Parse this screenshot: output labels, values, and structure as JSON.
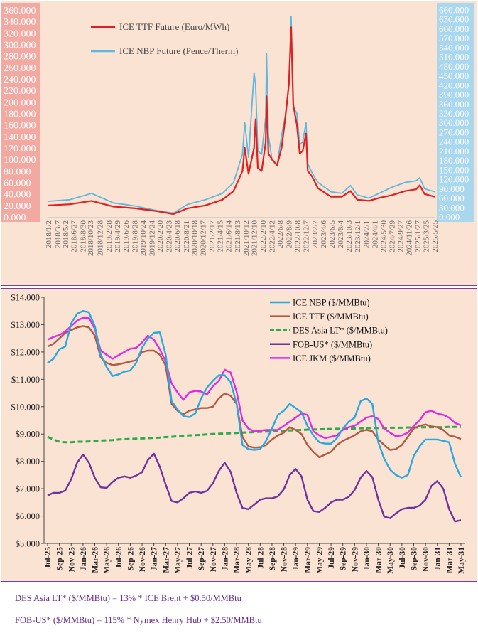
{
  "chart_data": [
    {
      "type": "line",
      "series": [
        {
          "name": "ICE TTF Future (Euro/MWh)",
          "color": "#e02020",
          "axis": "left",
          "x": [
            "2018/1/2",
            "2018/6/1",
            "2018/11/1",
            "2019/4/1",
            "2019/9/1",
            "2020/2/1",
            "2020/5/25",
            "2020/9/1",
            "2021/1/4",
            "2021/5/3",
            "2021/7/20",
            "2021/9/20",
            "2021/10/6",
            "2021/11/1",
            "2021/12/10",
            "2021/12/21",
            "2022/1/5",
            "2022/2/1",
            "2022/3/1",
            "2022/3/7",
            "2022/3/20",
            "2022/4/15",
            "2022/5/20",
            "2022/6/20",
            "2022/7/15",
            "2022/8/10",
            "2022/8/26",
            "2022/9/10",
            "2022/10/5",
            "2022/10/25",
            "2022/11/15",
            "2022/12/8",
            "2022/12/20",
            "2023/1/20",
            "2023/3/1",
            "2023/6/1",
            "2023/8/15",
            "2023/10/15",
            "2023/12/1",
            "2024/2/20",
            "2024/5/1",
            "2024/8/1",
            "2024/11/1",
            "2025/1/15",
            "2025/2/10",
            "2025/3/15",
            "2025/5/25"
          ],
          "values": [
            20,
            22,
            28,
            18,
            15,
            10,
            5,
            15,
            20,
            30,
            45,
            80,
            120,
            75,
            120,
            170,
            85,
            80,
            130,
            210,
            110,
            100,
            90,
            120,
            170,
            230,
            330,
            195,
            160,
            110,
            115,
            145,
            80,
            70,
            50,
            35,
            35,
            45,
            30,
            28,
            33,
            38,
            45,
            48,
            55,
            40,
            35
          ]
        },
        {
          "name": "ICE NBP Future (Pence/Therm)",
          "color": "#5cb8e0",
          "axis": "right",
          "x": [
            "2018/1/2",
            "2018/6/1",
            "2018/11/1",
            "2019/4/1",
            "2019/9/1",
            "2020/2/1",
            "2020/5/25",
            "2020/9/1",
            "2021/1/4",
            "2021/5/3",
            "2021/7/20",
            "2021/9/20",
            "2021/10/6",
            "2021/11/1",
            "2021/12/10",
            "2021/12/21",
            "2022/1/5",
            "2022/2/1",
            "2022/3/1",
            "2022/3/7",
            "2022/3/20",
            "2022/4/15",
            "2022/5/20",
            "2022/6/20",
            "2022/7/15",
            "2022/8/10",
            "2022/8/26",
            "2022/9/10",
            "2022/10/5",
            "2022/10/25",
            "2022/11/15",
            "2022/12/8",
            "2022/12/20",
            "2023/1/20",
            "2023/3/1",
            "2023/6/1",
            "2023/8/15",
            "2023/10/15",
            "2023/12/1",
            "2024/2/20",
            "2024/5/1",
            "2024/8/1",
            "2024/11/1",
            "2025/1/15",
            "2025/2/10",
            "2025/3/15",
            "2025/5/25"
          ],
          "values": [
            50,
            55,
            75,
            45,
            35,
            20,
            12,
            40,
            55,
            75,
            110,
            200,
            300,
            190,
            460,
            420,
            210,
            200,
            320,
            520,
            260,
            180,
            165,
            260,
            320,
            420,
            640,
            350,
            330,
            230,
            240,
            300,
            170,
            140,
            110,
            80,
            75,
            100,
            70,
            60,
            75,
            95,
            110,
            115,
            125,
            90,
            80
          ]
        }
      ],
      "left_axis": {
        "ylim": [
          0,
          360
        ],
        "ticks": [
          "0.000",
          "20.000",
          "40.000",
          "60.000",
          "80.000",
          "100.000",
          "120.000",
          "140.000",
          "160.000",
          "180.000",
          "200.000",
          "220.000",
          "240.000",
          "260.000",
          "280.000",
          "300.000",
          "320.000",
          "340.000",
          "360.000"
        ],
        "bg_color": "#f2a9a1"
      },
      "right_axis": {
        "ylim": [
          0,
          660
        ],
        "ticks": [
          "0.000",
          "30.000",
          "60.000",
          "90.000",
          "120.000",
          "150.000",
          "180.000",
          "210.000",
          "240.000",
          "270.000",
          "300.000",
          "330.000",
          "360.000",
          "390.000",
          "420.000",
          "450.000",
          "480.000",
          "510.000",
          "540.000",
          "570.000",
          "600.000",
          "630.000",
          "660.000"
        ],
        "bg_color": "#a9d8ee"
      },
      "x_ticks": [
        "2018/1/2",
        "2018/4/27",
        "2018/8/30",
        "2018/12/28",
        "2019/4/29",
        "2019/8/28",
        "2019/12/24",
        "2020/4/23",
        "2020/8/21",
        "2020/12/17",
        "2021/4/15",
        "2021/8/13",
        "2021/12/10",
        "2022/4/12",
        "2022/8/9",
        "2022/12/7",
        "2023/4/6",
        "2023/8/4",
        "2023/12/1",
        "2024/4/1",
        "2024/7/29",
        "2024/11/26",
        "2025/3/25"
      ],
      "x_tick_labels": [
        "2018/1/2",
        "2018/3/7",
        "2018/5/2",
        "2018/6/27",
        "2018/8/30",
        "2018/10/23",
        "2018/12/28",
        "2019/2/28",
        "2019/4/29",
        "2019/6/26",
        "2019/8/28",
        "2019/10/24",
        "2019/12/24",
        "2020/2/20",
        "2020/4/23",
        "2020/6/18",
        "2020/8/21",
        "2020/10/18",
        "2020/12/17",
        "2021/2/17",
        "2021/4/15",
        "2021/6/14",
        "2021/8/13",
        "2021/10/12",
        "2021/12/10",
        "2022/2/10",
        "2022/4/12",
        "2022/6/8",
        "2022/8/9",
        "2022/10/8",
        "2022/12/7",
        "2023/2/7",
        "2023/4/6",
        "2023/6/5",
        "2023/8/4",
        "2023/10/3",
        "2023/12/1",
        "2024/2/1",
        "2024/4/1",
        "2024/5/30",
        "2024/7/29",
        "2024/9/27",
        "2024/11/26",
        "2025/1/27",
        "2025/3/25",
        "2025/5/25"
      ],
      "legend_position": "top-left",
      "grid": false
    },
    {
      "type": "line",
      "categories": [
        "Jul-25",
        "Aug-25",
        "Sep-25",
        "Oct-25",
        "Nov-25",
        "Dec-25",
        "Jan-26",
        "Feb-26",
        "Mar-26",
        "Apr-26",
        "May-26",
        "Jun-26",
        "Jul-26",
        "Aug-26",
        "Sep-26",
        "Oct-26",
        "Nov-26",
        "Dec-26",
        "Jan-27",
        "Feb-27",
        "Mar-27",
        "Apr-27",
        "May-27",
        "Jun-27",
        "Jul-27",
        "Aug-27",
        "Sep-27",
        "Oct-27",
        "Nov-27",
        "Dec-27",
        "Jan-28",
        "Feb-28",
        "Mar-28",
        "Apr-28",
        "May-28",
        "Jun-28",
        "Jul-28",
        "Aug-28",
        "Sep-28",
        "Oct-28",
        "Nov-28",
        "Dec-28",
        "Jan-29",
        "Feb-29",
        "Mar-29",
        "Apr-29",
        "May-29",
        "Jun-29",
        "Jul-29",
        "Aug-29",
        "Sep-29",
        "Oct-29",
        "Nov-29",
        "Dec-29",
        "Jan-30",
        "Feb-30",
        "Mar-30",
        "Apr-30",
        "May-30",
        "Jun-30",
        "Jul-30",
        "Aug-30",
        "Sep-30",
        "Oct-30",
        "Nov-30",
        "Dec-30",
        "Jan-31",
        "Feb-31",
        "Mar-31",
        "Apr-31",
        "May-31"
      ],
      "tick_labels": [
        "Jul-25",
        "Sep-25",
        "Nov-25",
        "Jan-26",
        "Mar-26",
        "May-26",
        "Jul-26",
        "Sep-26",
        "Nov-26",
        "Jan-27",
        "Mar-27",
        "May-27",
        "Jul-27",
        "Sep-27",
        "Nov-27",
        "Jan-28",
        "Mar-28",
        "May-28",
        "Jul-28",
        "Sep-28",
        "Nov-28",
        "Jan-29",
        "Mar-29",
        "May-29",
        "Jul-29",
        "Sep-29",
        "Nov-29",
        "Jan-30",
        "Mar-30",
        "May-30",
        "Jul-30",
        "Sep-30",
        "Nov-30",
        "Jan-31",
        "Mar-31",
        "May-31"
      ],
      "series": [
        {
          "name": "ICE NBP ($/MMBtu)",
          "color": "#27a8e0",
          "dash": false,
          "values": [
            11.6,
            11.75,
            12.1,
            12.2,
            13.05,
            13.4,
            13.5,
            13.45,
            12.95,
            11.9,
            11.45,
            11.12,
            11.18,
            11.28,
            11.32,
            11.6,
            12.15,
            12.5,
            12.7,
            12.72,
            11.9,
            10.2,
            9.9,
            9.65,
            9.62,
            9.75,
            10.3,
            10.7,
            10.95,
            11.15,
            11.15,
            10.9,
            10.1,
            8.6,
            8.45,
            8.42,
            8.45,
            8.75,
            9.2,
            9.7,
            9.85,
            10.1,
            9.95,
            9.8,
            9.3,
            8.95,
            8.7,
            8.65,
            8.65,
            8.85,
            9.2,
            9.45,
            9.6,
            10.2,
            10.3,
            10.1,
            8.7,
            8.1,
            7.7,
            7.5,
            7.4,
            7.5,
            8.2,
            8.55,
            8.8,
            8.8,
            8.8,
            8.75,
            8.7,
            7.9,
            7.42
          ]
        },
        {
          "name": "ICE TTF ($/MMBtu)",
          "color": "#b05a43",
          "dash": false,
          "values": [
            12.2,
            12.3,
            12.5,
            12.7,
            12.8,
            12.9,
            12.95,
            12.9,
            12.6,
            11.8,
            11.6,
            11.52,
            11.55,
            11.6,
            11.65,
            11.7,
            12.0,
            12.05,
            12.05,
            11.9,
            11.5,
            10.1,
            9.85,
            9.72,
            9.85,
            9.9,
            9.95,
            9.95,
            10.0,
            10.3,
            10.48,
            10.4,
            10.1,
            8.9,
            8.55,
            8.5,
            8.52,
            8.6,
            8.8,
            8.95,
            9.05,
            9.25,
            9.15,
            9.0,
            8.6,
            8.35,
            8.15,
            8.25,
            8.35,
            8.6,
            8.75,
            8.85,
            8.95,
            9.1,
            9.15,
            9.1,
            8.8,
            8.6,
            8.42,
            8.45,
            8.6,
            8.9,
            9.2,
            9.3,
            9.35,
            9.28,
            9.25,
            9.15,
            8.95,
            8.9,
            8.82
          ]
        },
        {
          "name": "DES Asia LT* ($/MMBtu)",
          "color": "#2bab4b",
          "dash": true,
          "values": [
            8.9,
            8.8,
            8.72,
            8.7,
            8.7,
            8.72,
            8.72,
            8.73,
            8.75,
            8.76,
            8.77,
            8.78,
            8.8,
            8.81,
            8.82,
            8.83,
            8.84,
            8.85,
            8.86,
            8.87,
            8.89,
            8.9,
            8.92,
            8.93,
            8.95,
            8.96,
            8.97,
            8.99,
            9.0,
            9.01,
            9.02,
            9.03,
            9.04,
            9.05,
            9.06,
            9.07,
            9.08,
            9.09,
            9.1,
            9.11,
            9.12,
            9.13,
            9.14,
            9.15,
            9.16,
            9.17,
            9.17,
            9.18,
            9.18,
            9.19,
            9.19,
            9.2,
            9.2,
            9.21,
            9.21,
            9.22,
            9.22,
            9.22,
            9.23,
            9.23,
            9.23,
            9.24,
            9.24,
            9.24,
            9.25,
            9.25,
            9.25,
            9.25,
            9.26,
            9.26,
            9.26
          ]
        },
        {
          "name": "FOB-US* ($/MMBtu)",
          "color": "#6c34a0",
          "dash": false,
          "values": [
            6.75,
            6.85,
            6.85,
            6.93,
            7.35,
            7.95,
            8.25,
            7.95,
            7.4,
            7.05,
            7.03,
            7.25,
            7.4,
            7.45,
            7.4,
            7.48,
            7.6,
            8.05,
            8.28,
            7.8,
            7.15,
            6.55,
            6.5,
            6.65,
            6.85,
            6.9,
            6.85,
            6.92,
            7.2,
            7.65,
            7.95,
            7.62,
            6.85,
            6.3,
            6.25,
            6.42,
            6.6,
            6.65,
            6.65,
            6.72,
            6.98,
            7.5,
            7.72,
            7.45,
            6.6,
            6.18,
            6.15,
            6.3,
            6.5,
            6.6,
            6.6,
            6.7,
            6.95,
            7.4,
            7.65,
            7.42,
            6.6,
            5.98,
            5.92,
            6.1,
            6.25,
            6.3,
            6.3,
            6.38,
            6.6,
            7.1,
            7.28,
            7.0,
            6.25,
            5.8,
            5.85
          ]
        },
        {
          "name": "ICE JKM ($/MMBtu)",
          "color": "#e02be0",
          "dash": false,
          "values": [
            12.45,
            12.55,
            12.62,
            12.75,
            12.95,
            13.15,
            13.25,
            13.25,
            12.85,
            12.05,
            11.9,
            11.75,
            11.88,
            12.0,
            12.12,
            12.15,
            12.35,
            12.6,
            12.45,
            12.1,
            11.65,
            10.85,
            10.52,
            10.25,
            10.52,
            10.58,
            10.55,
            10.45,
            10.75,
            10.95,
            11.35,
            11.25,
            10.55,
            9.5,
            9.2,
            9.1,
            9.12,
            9.15,
            9.15,
            9.15,
            9.3,
            9.45,
            9.6,
            9.75,
            9.7,
            9.1,
            8.95,
            8.85,
            8.9,
            8.95,
            9.15,
            9.25,
            9.3,
            9.45,
            9.6,
            9.65,
            9.55,
            9.2,
            9.05,
            8.92,
            8.95,
            9.05,
            9.3,
            9.5,
            9.8,
            9.85,
            9.75,
            9.7,
            9.6,
            9.4,
            9.32
          ]
        }
      ],
      "y_ticks": [
        "$5.000",
        "$6.000",
        "$7.000",
        "$8.000",
        "$9.000",
        "$10.000",
        "$11.000",
        "$12.000",
        "$13.000",
        "$14.000"
      ],
      "ylim": [
        5,
        14
      ],
      "legend_position": "top-right",
      "grid": false
    }
  ],
  "footnotes": {
    "des": "DES Asia LT* ($/MMBtu) = 13% * ICE Brent + $0.50/MMBtu",
    "fob": "FOB-US* ($/MMBtu) = 115% * Nymex Henry Hub + $2.50/MMBtu"
  }
}
